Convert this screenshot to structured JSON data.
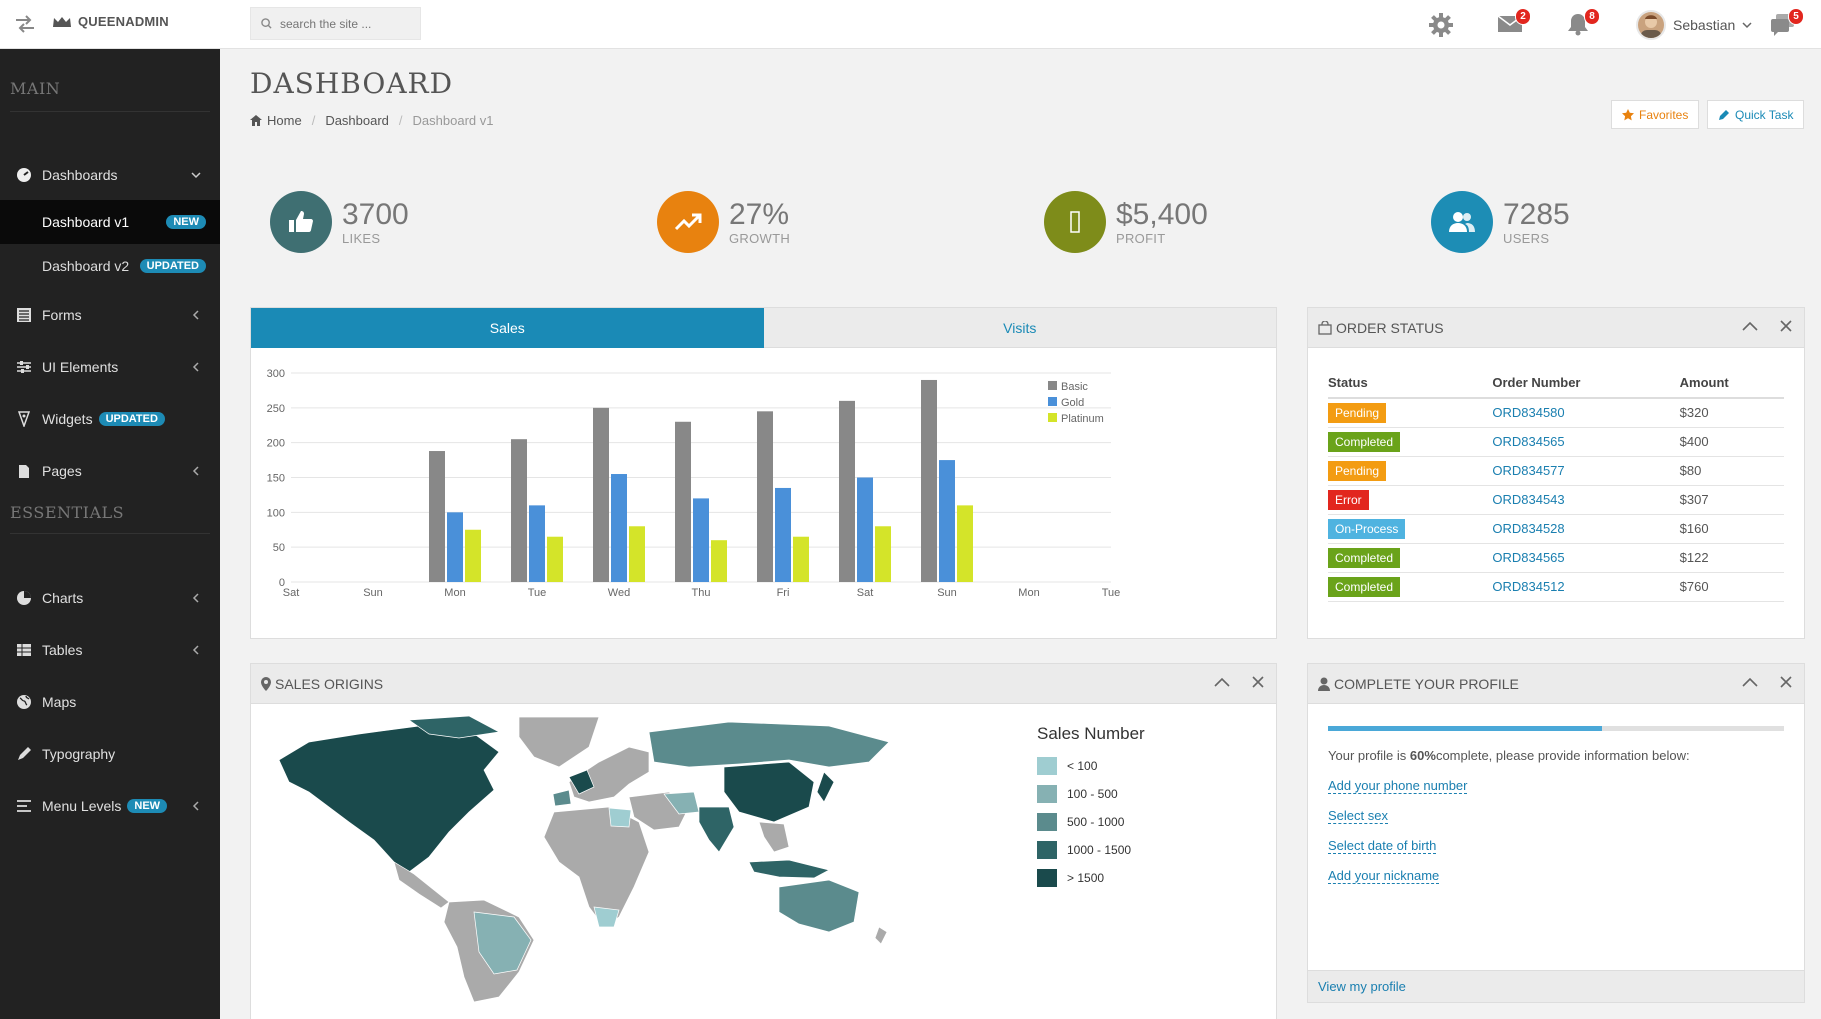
{
  "app": {
    "brand": "QUEENADMIN"
  },
  "topbar": {
    "search_placeholder": "search the site ...",
    "mail_badge": "2",
    "bell_badge": "8",
    "chat_badge": "5",
    "user_name": "Sebastian"
  },
  "sidebar": {
    "main_heading": "MAIN",
    "essentials_heading": "ESSENTIALS",
    "dashboards": "Dashboards",
    "dash_v1": "Dashboard v1",
    "dash_v1_badge": "NEW",
    "dash_v2": "Dashboard v2",
    "dash_v2_badge": "UPDATED",
    "forms": "Forms",
    "ui_elements": "UI Elements",
    "widgets": "Widgets",
    "widgets_badge": "UPDATED",
    "pages": "Pages",
    "charts": "Charts",
    "tables": "Tables",
    "maps": "Maps",
    "typography": "Typography",
    "menu_levels": "Menu Levels",
    "menu_levels_badge": "NEW"
  },
  "page": {
    "title": "DASHBOARD",
    "breadcrumb_home": "Home",
    "breadcrumb_dashboard": "Dashboard",
    "breadcrumb_current": "Dashboard v1",
    "favorites": "Favorites",
    "quick_task": "Quick Task"
  },
  "stats": [
    {
      "value": "3700",
      "label": "LIKES",
      "color": "#3f6f72"
    },
    {
      "value": "27%",
      "label": "GROWTH",
      "color": "#e8820f"
    },
    {
      "value": "$5,400",
      "label": "PROFIT",
      "color": "#7e8c1a"
    },
    {
      "value": "7285",
      "label": "USERS",
      "color": "#1d8db5"
    }
  ],
  "sales_panel": {
    "tab_sales": "Sales",
    "tab_visits": "Visits"
  },
  "chart_data": {
    "type": "bar",
    "categories": [
      "Sat",
      "Sun",
      "Mon",
      "Tue",
      "Wed",
      "Thu",
      "Fri",
      "Sat",
      "Sun",
      "Mon",
      "Tue"
    ],
    "series": [
      {
        "name": "Basic",
        "color": "#888888",
        "values": [
          null,
          null,
          188,
          205,
          250,
          230,
          245,
          260,
          290,
          null,
          null
        ]
      },
      {
        "name": "Gold",
        "color": "#4a90d9",
        "values": [
          null,
          null,
          100,
          110,
          155,
          120,
          135,
          150,
          175,
          null,
          null
        ]
      },
      {
        "name": "Platinum",
        "color": "#d4e429",
        "values": [
          null,
          null,
          75,
          65,
          80,
          60,
          65,
          80,
          110,
          null,
          null
        ]
      }
    ],
    "yticks": [
      0,
      50,
      100,
      150,
      200,
      250,
      300
    ],
    "ylim": [
      0,
      300
    ],
    "grid": true,
    "legend": "top-right"
  },
  "order_status": {
    "title": "ORDER STATUS",
    "headers": [
      "Status",
      "Order Number",
      "Amount"
    ],
    "rows": [
      {
        "status": "Pending",
        "color": "#f39c12",
        "order": "ORD834580",
        "amount": "$320"
      },
      {
        "status": "Completed",
        "color": "#6aa31a",
        "order": "ORD834565",
        "amount": "$400"
      },
      {
        "status": "Pending",
        "color": "#f39c12",
        "order": "ORD834577",
        "amount": "$80"
      },
      {
        "status": "Error",
        "color": "#e2261e",
        "order": "ORD834543",
        "amount": "$307"
      },
      {
        "status": "On-Process",
        "color": "#4fb3e0",
        "order": "ORD834528",
        "amount": "$160"
      },
      {
        "status": "Completed",
        "color": "#6aa31a",
        "order": "ORD834565",
        "amount": "$122"
      },
      {
        "status": "Completed",
        "color": "#6aa31a",
        "order": "ORD834512",
        "amount": "$760"
      }
    ]
  },
  "sales_origins": {
    "title": "SALES ORIGINS",
    "legend_title": "Sales Number",
    "legend": [
      {
        "label": "< 100",
        "color": "#9fcdd1"
      },
      {
        "label": "100 - 500",
        "color": "#86b1b3"
      },
      {
        "label": "500 - 1000",
        "color": "#5b8b8d"
      },
      {
        "label": "1000 - 1500",
        "color": "#2e6466"
      },
      {
        "label": "> 1500",
        "color": "#1a4a4c"
      }
    ]
  },
  "profile": {
    "title": "COMPLETE YOUR PROFILE",
    "progress": 0.6,
    "text_pre": "Your profile is ",
    "text_bold": "60%",
    "text_post": "complete, please provide information below:",
    "links": [
      "Add your phone number",
      "Select sex",
      "Select date of birth",
      "Add your nickname"
    ],
    "footer": "View my profile"
  }
}
